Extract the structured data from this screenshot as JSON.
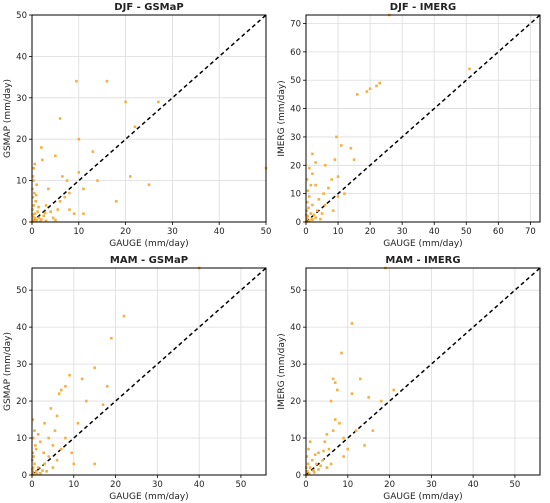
{
  "chart_data": [
    {
      "type": "scatter",
      "title": "DJF - GSMaP",
      "xlabel": "GAUGE (mm/day)",
      "ylabel": "GSMAP (mm/day)",
      "xlim": [
        0,
        50
      ],
      "ylim": [
        0,
        50
      ],
      "xticks": [
        0,
        10,
        20,
        30,
        40,
        50
      ],
      "yticks": [
        0,
        10,
        20,
        30,
        40,
        50
      ],
      "grid": true,
      "reference_line": "1:1 dashed",
      "point_color": "#F5B041",
      "points": [
        [
          0,
          0
        ],
        [
          0.2,
          0.5
        ],
        [
          0.5,
          0.2
        ],
        [
          0.3,
          1.2
        ],
        [
          1,
          0.4
        ],
        [
          1.5,
          1
        ],
        [
          0.6,
          2
        ],
        [
          2,
          0.6
        ],
        [
          0.1,
          3
        ],
        [
          3,
          0.3
        ],
        [
          0.4,
          4
        ],
        [
          1.2,
          2.5
        ],
        [
          2.5,
          1.5
        ],
        [
          0.8,
          5
        ],
        [
          0.2,
          6
        ],
        [
          0.5,
          7
        ],
        [
          0.1,
          8
        ],
        [
          0.3,
          10
        ],
        [
          0.2,
          11
        ],
        [
          1,
          9
        ],
        [
          0.4,
          13
        ],
        [
          0.6,
          14
        ],
        [
          2,
          18
        ],
        [
          2.2,
          15
        ],
        [
          3,
          4
        ],
        [
          4,
          2.5
        ],
        [
          4.5,
          1
        ],
        [
          5,
          0.5
        ],
        [
          6,
          5
        ],
        [
          5.5,
          3
        ],
        [
          7,
          6
        ],
        [
          3.5,
          8
        ],
        [
          5,
          16
        ],
        [
          6,
          25
        ],
        [
          6.5,
          11
        ],
        [
          7.5,
          10
        ],
        [
          8,
          3
        ],
        [
          8,
          7
        ],
        [
          9,
          2
        ],
        [
          9.5,
          34
        ],
        [
          10,
          12
        ],
        [
          10,
          20
        ],
        [
          11,
          2
        ],
        [
          11,
          8
        ],
        [
          13,
          17
        ],
        [
          14,
          10
        ],
        [
          16,
          34
        ],
        [
          18,
          5
        ],
        [
          20,
          29
        ],
        [
          21,
          11
        ],
        [
          22,
          23
        ],
        [
          25,
          9
        ],
        [
          27,
          29
        ],
        [
          50,
          13
        ],
        [
          0.1,
          1.8
        ],
        [
          0.7,
          0.9
        ],
        [
          1.8,
          0.2
        ],
        [
          1.4,
          3.6
        ],
        [
          0.9,
          6.5
        ],
        [
          2.8,
          2.2
        ]
      ]
    },
    {
      "type": "scatter",
      "title": "DJF - IMERG",
      "xlabel": "GAUGE (mm/day)",
      "ylabel": "IMERG (mm/day)",
      "xlim": [
        0,
        73
      ],
      "ylim": [
        0,
        73
      ],
      "xticks": [
        0,
        10,
        20,
        30,
        40,
        50,
        60,
        70
      ],
      "yticks": [
        0,
        10,
        20,
        30,
        40,
        50,
        60,
        70
      ],
      "grid": true,
      "reference_line": "1:1 dashed",
      "point_color": "#F5B041",
      "points": [
        [
          0,
          0
        ],
        [
          0.3,
          1
        ],
        [
          1,
          0.3
        ],
        [
          0.5,
          2
        ],
        [
          2,
          0.8
        ],
        [
          1.5,
          3
        ],
        [
          0.2,
          4
        ],
        [
          3,
          1.5
        ],
        [
          0.8,
          5
        ],
        [
          2.5,
          2.5
        ],
        [
          0.4,
          7
        ],
        [
          1,
          9
        ],
        [
          0.6,
          11
        ],
        [
          2,
          6
        ],
        [
          3.5,
          4
        ],
        [
          1.5,
          13
        ],
        [
          0.3,
          15
        ],
        [
          2,
          17
        ],
        [
          1,
          19
        ],
        [
          3,
          21
        ],
        [
          2,
          24
        ],
        [
          4,
          8
        ],
        [
          5,
          3
        ],
        [
          5.5,
          10
        ],
        [
          6,
          6
        ],
        [
          7,
          12
        ],
        [
          8,
          15
        ],
        [
          8.5,
          4
        ],
        [
          9,
          22
        ],
        [
          9.5,
          30
        ],
        [
          10,
          9
        ],
        [
          10,
          16
        ],
        [
          11,
          27
        ],
        [
          12,
          10
        ],
        [
          14,
          26
        ],
        [
          15,
          22
        ],
        [
          16,
          45
        ],
        [
          19,
          46
        ],
        [
          20,
          47
        ],
        [
          22,
          48
        ],
        [
          23,
          49
        ],
        [
          26,
          73
        ],
        [
          51,
          54
        ],
        [
          0.1,
          2.5
        ],
        [
          1.8,
          1
        ],
        [
          4.5,
          1
        ],
        [
          3,
          13
        ],
        [
          6,
          20
        ]
      ]
    },
    {
      "type": "scatter",
      "title": "MAM - GSMaP",
      "xlabel": "GAUGE (mm/day)",
      "ylabel": "GSMAP (mm/day)",
      "xlim": [
        0,
        56
      ],
      "ylim": [
        0,
        56
      ],
      "xticks": [
        0,
        10,
        20,
        30,
        40,
        50
      ],
      "yticks": [
        0,
        10,
        20,
        30,
        40,
        50
      ],
      "grid": true,
      "reference_line": "1:1 dashed",
      "point_color": "#F5B041",
      "points": [
        [
          0,
          0
        ],
        [
          0.2,
          0.8
        ],
        [
          0.5,
          0.2
        ],
        [
          1,
          1
        ],
        [
          0.3,
          2
        ],
        [
          2,
          0.5
        ],
        [
          0.6,
          3
        ],
        [
          1.5,
          2
        ],
        [
          0.1,
          4
        ],
        [
          2.5,
          1.2
        ],
        [
          0.4,
          5
        ],
        [
          0.2,
          6
        ],
        [
          3,
          3
        ],
        [
          1,
          7
        ],
        [
          0.8,
          8
        ],
        [
          0.3,
          10
        ],
        [
          0.6,
          12
        ],
        [
          0.2,
          15
        ],
        [
          1.5,
          11
        ],
        [
          2,
          9
        ],
        [
          3,
          14
        ],
        [
          4,
          5
        ],
        [
          4,
          10
        ],
        [
          5,
          2
        ],
        [
          5,
          8
        ],
        [
          5.5,
          12
        ],
        [
          6,
          4
        ],
        [
          6,
          16
        ],
        [
          7,
          7
        ],
        [
          7,
          23
        ],
        [
          8,
          10
        ],
        [
          8,
          24
        ],
        [
          9,
          27
        ],
        [
          10,
          3
        ],
        [
          11,
          14
        ],
        [
          12,
          26
        ],
        [
          13,
          20
        ],
        [
          15,
          3
        ],
        [
          15,
          29
        ],
        [
          17,
          19
        ],
        [
          18,
          24
        ],
        [
          19,
          37
        ],
        [
          22,
          43
        ],
        [
          40,
          56
        ],
        [
          0.1,
          1.5
        ],
        [
          1.2,
          0.3
        ],
        [
          2.8,
          6
        ],
        [
          3.5,
          1
        ],
        [
          4.5,
          18
        ],
        [
          6.5,
          22
        ],
        [
          9.5,
          6
        ]
      ]
    },
    {
      "type": "scatter",
      "title": "MAM - IMERG",
      "xlabel": "GAUGE (mm/day)",
      "ylabel": "IMERG (mm/day)",
      "xlim": [
        0,
        56
      ],
      "ylim": [
        0,
        56
      ],
      "xticks": [
        0,
        10,
        20,
        30,
        40,
        50
      ],
      "yticks": [
        0,
        10,
        20,
        30,
        40,
        50
      ],
      "grid": true,
      "reference_line": "1:1 dashed",
      "point_color": "#F5B041",
      "points": [
        [
          0,
          0
        ],
        [
          0.3,
          1
        ],
        [
          0.8,
          0.3
        ],
        [
          1,
          2
        ],
        [
          2,
          0.7
        ],
        [
          0.5,
          3
        ],
        [
          1.5,
          4
        ],
        [
          3,
          1.5
        ],
        [
          0.2,
          5
        ],
        [
          2.5,
          3
        ],
        [
          0.6,
          7
        ],
        [
          1,
          9
        ],
        [
          3,
          6
        ],
        [
          4,
          4
        ],
        [
          4.5,
          9
        ],
        [
          5,
          2
        ],
        [
          5,
          11
        ],
        [
          5.5,
          7
        ],
        [
          6,
          3
        ],
        [
          6.5,
          12
        ],
        [
          6,
          20
        ],
        [
          6.5,
          26
        ],
        [
          7,
          25
        ],
        [
          7,
          15
        ],
        [
          7.5,
          23
        ],
        [
          8,
          14
        ],
        [
          8.5,
          33
        ],
        [
          9,
          5
        ],
        [
          9,
          10
        ],
        [
          10,
          7
        ],
        [
          11,
          41
        ],
        [
          11,
          22
        ],
        [
          12,
          12
        ],
        [
          13,
          26
        ],
        [
          14,
          8
        ],
        [
          15,
          21
        ],
        [
          16,
          12
        ],
        [
          18,
          20
        ],
        [
          19,
          56
        ],
        [
          21,
          23
        ],
        [
          0.1,
          2
        ],
        [
          1.8,
          1.2
        ],
        [
          3.5,
          2.5
        ],
        [
          4.2,
          6.5
        ],
        [
          2.2,
          5.5
        ]
      ]
    }
  ]
}
